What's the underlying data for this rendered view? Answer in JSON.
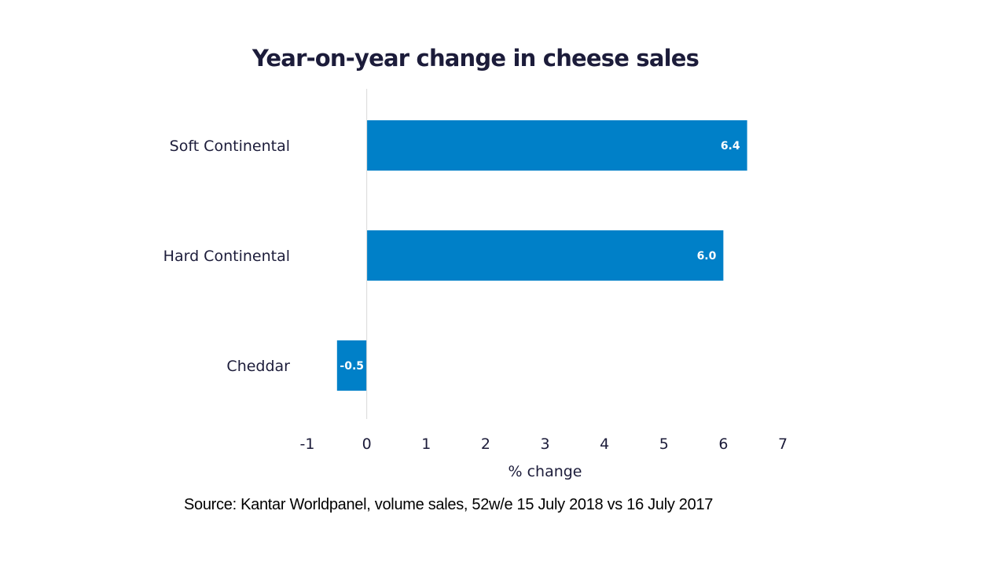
{
  "chart_data": {
    "type": "bar",
    "orientation": "horizontal",
    "title": "Year-on-year change in cheese sales",
    "categories": [
      "Soft Continental",
      "Hard Continental",
      "Cheddar"
    ],
    "values": [
      6.4,
      6.0,
      -0.5
    ],
    "data_labels": [
      "6.4",
      "6.0",
      "-0.5"
    ],
    "xlabel": "% change",
    "ylabel": "",
    "xlim": [
      -1,
      7
    ],
    "x_ticks": [
      -1,
      0,
      1,
      2,
      3,
      4,
      5,
      6,
      7
    ],
    "x_tick_labels": [
      "-1",
      "0",
      "1",
      "2",
      "3",
      "4",
      "5",
      "6",
      "7"
    ],
    "grid": false,
    "legend": "none",
    "bar_color": "#0080C8",
    "source": "Source: Kantar Worldpanel,  volume sales, 52w/e 15 July 2018 vs 16 July 2017"
  }
}
